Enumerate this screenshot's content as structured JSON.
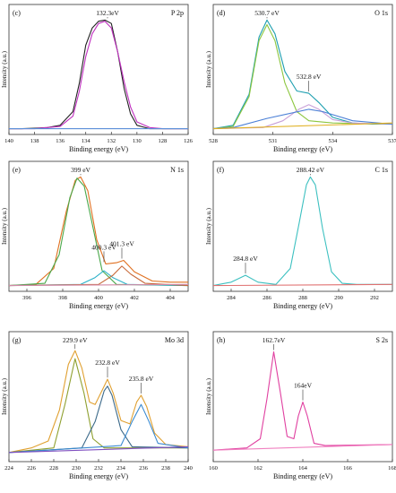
{
  "chart_data": [
    {
      "type": "line",
      "panel_label": "(c)",
      "element": "P 2p",
      "xlabel": "Binding energy (eV)",
      "ylabel": "Intensity (a.u.)",
      "xlim": [
        140,
        126
      ],
      "xticks": [
        140,
        138,
        136,
        134,
        132,
        130,
        128,
        126
      ],
      "peaks": [
        {
          "label": "132.3eV",
          "x": 132.3
        }
      ],
      "series": [
        {
          "color": "#222222",
          "points": [
            [
              140,
              0.05
            ],
            [
              139,
              0.05
            ],
            [
              138,
              0.055
            ],
            [
              137,
              0.06
            ],
            [
              136,
              0.08
            ],
            [
              135,
              0.2
            ],
            [
              134.5,
              0.45
            ],
            [
              134,
              0.78
            ],
            [
              133.5,
              0.93
            ],
            [
              133,
              0.99
            ],
            [
              132.5,
              1.0
            ],
            [
              132,
              0.97
            ],
            [
              131.5,
              0.72
            ],
            [
              131,
              0.4
            ],
            [
              130.5,
              0.18
            ],
            [
              130,
              0.08
            ],
            [
              129,
              0.05
            ],
            [
              128,
              0.05
            ],
            [
              127,
              0.05
            ],
            [
              126,
              0.05
            ]
          ]
        },
        {
          "color": "#c030c0",
          "points": [
            [
              140,
              0.05
            ],
            [
              138,
              0.05
            ],
            [
              136,
              0.07
            ],
            [
              135,
              0.16
            ],
            [
              134.5,
              0.38
            ],
            [
              134,
              0.68
            ],
            [
              133.5,
              0.88
            ],
            [
              133,
              0.97
            ],
            [
              132.5,
              0.99
            ],
            [
              132,
              0.93
            ],
            [
              131.5,
              0.72
            ],
            [
              131,
              0.46
            ],
            [
              130.5,
              0.24
            ],
            [
              130,
              0.11
            ],
            [
              129,
              0.06
            ],
            [
              128,
              0.05
            ],
            [
              126,
              0.05
            ]
          ]
        },
        {
          "color": "#5b8fd9",
          "points": [
            [
              140,
              0.05
            ],
            [
              126,
              0.05
            ]
          ]
        }
      ]
    },
    {
      "type": "line",
      "panel_label": "(d)",
      "element": "O 1s",
      "xlabel": "Binding energy (eV)",
      "ylabel": "Intensity (a.u.)",
      "xlim": [
        528,
        537
      ],
      "xticks": [
        528,
        531,
        534,
        537
      ],
      "peaks": [
        {
          "label": "530.7 eV",
          "x": 530.7
        },
        {
          "label": "532.8 eV",
          "x": 532.8
        }
      ],
      "series": [
        {
          "color": "#1e9fb0",
          "points": [
            [
              528,
              0.05
            ],
            [
              529,
              0.08
            ],
            [
              529.8,
              0.35
            ],
            [
              530.3,
              0.85
            ],
            [
              530.7,
              1.0
            ],
            [
              531.1,
              0.88
            ],
            [
              531.6,
              0.55
            ],
            [
              532.2,
              0.38
            ],
            [
              532.8,
              0.36
            ],
            [
              533.3,
              0.28
            ],
            [
              534,
              0.15
            ],
            [
              535,
              0.1
            ],
            [
              536,
              0.09
            ],
            [
              537,
              0.09
            ]
          ]
        },
        {
          "color": "#8cc63f",
          "points": [
            [
              528,
              0.05
            ],
            [
              529,
              0.07
            ],
            [
              529.8,
              0.33
            ],
            [
              530.3,
              0.82
            ],
            [
              530.7,
              0.96
            ],
            [
              531.1,
              0.82
            ],
            [
              531.6,
              0.45
            ],
            [
              532.2,
              0.2
            ],
            [
              532.8,
              0.12
            ],
            [
              534,
              0.1
            ],
            [
              537,
              0.09
            ]
          ]
        },
        {
          "color": "#c8a0d8",
          "points": [
            [
              528,
              0.05
            ],
            [
              530.5,
              0.06
            ],
            [
              531.5,
              0.12
            ],
            [
              532.3,
              0.22
            ],
            [
              532.8,
              0.26
            ],
            [
              533.3,
              0.22
            ],
            [
              534,
              0.13
            ],
            [
              535,
              0.1
            ],
            [
              537,
              0.09
            ]
          ]
        },
        {
          "color": "#4a7fd6",
          "points": [
            [
              528,
              0.05
            ],
            [
              529,
              0.06
            ],
            [
              530.7,
              0.14
            ],
            [
              532.8,
              0.22
            ],
            [
              533.5,
              0.2
            ],
            [
              535,
              0.12
            ],
            [
              537,
              0.09
            ]
          ]
        },
        {
          "color": "#e0b020",
          "points": [
            [
              528,
              0.05
            ],
            [
              537,
              0.1
            ]
          ]
        }
      ]
    },
    {
      "type": "line",
      "panel_label": "(e)",
      "element": "N 1s",
      "xlabel": "Binding energy (eV)",
      "ylabel": "Intensity (a.u.)",
      "xlim": [
        395,
        405
      ],
      "xticks": [
        396,
        398,
        400,
        402,
        404
      ],
      "peaks": [
        {
          "label": "399 eV",
          "x": 399
        },
        {
          "label": "400.3 eV",
          "x": 400.3
        },
        {
          "label": "401.3 eV",
          "x": 401.3
        }
      ],
      "series": [
        {
          "color": "#e07020",
          "points": [
            [
              395,
              0.05
            ],
            [
              396.5,
              0.06
            ],
            [
              397.5,
              0.2
            ],
            [
              398.2,
              0.7
            ],
            [
              398.7,
              0.97
            ],
            [
              399,
              1.0
            ],
            [
              399.4,
              0.88
            ],
            [
              399.9,
              0.45
            ],
            [
              400.4,
              0.24
            ],
            [
              401,
              0.25
            ],
            [
              401.4,
              0.27
            ],
            [
              402,
              0.17
            ],
            [
              403,
              0.09
            ],
            [
              404,
              0.08
            ],
            [
              405,
              0.08
            ]
          ]
        },
        {
          "color": "#4aa84a",
          "points": [
            [
              395,
              0.05
            ],
            [
              397,
              0.07
            ],
            [
              397.8,
              0.32
            ],
            [
              398.4,
              0.82
            ],
            [
              398.8,
              0.99
            ],
            [
              399.2,
              0.92
            ],
            [
              399.7,
              0.55
            ],
            [
              400.2,
              0.18
            ],
            [
              401,
              0.06
            ],
            [
              405,
              0.05
            ]
          ]
        },
        {
          "color": "#2ab0c8",
          "points": [
            [
              395,
              0.05
            ],
            [
              399,
              0.06
            ],
            [
              399.8,
              0.12
            ],
            [
              400.3,
              0.18
            ],
            [
              400.8,
              0.12
            ],
            [
              401.6,
              0.06
            ],
            [
              405,
              0.05
            ]
          ]
        },
        {
          "color": "#c86a3a",
          "points": [
            [
              395,
              0.05
            ],
            [
              400,
              0.06
            ],
            [
              400.8,
              0.14
            ],
            [
              401.3,
              0.22
            ],
            [
              401.8,
              0.15
            ],
            [
              402.6,
              0.07
            ],
            [
              405,
              0.05
            ]
          ]
        },
        {
          "color": "#d28aa8",
          "points": [
            [
              395,
              0.05
            ],
            [
              405,
              0.06
            ]
          ]
        }
      ]
    },
    {
      "type": "line",
      "panel_label": "(f)",
      "element": "C 1s",
      "xlabel": "Binding energy (eV)",
      "ylabel": "Intensity (a.u.)",
      "xlim": [
        283,
        293
      ],
      "xticks": [
        284,
        286,
        288,
        290,
        292
      ],
      "peaks": [
        {
          "label": "284.8 eV",
          "x": 284.8
        },
        {
          "label": "288.42 eV",
          "x": 288.42
        }
      ],
      "series": [
        {
          "color": "#3cc0c0",
          "points": [
            [
              283,
              0.05
            ],
            [
              284,
              0.08
            ],
            [
              284.8,
              0.14
            ],
            [
              285.5,
              0.08
            ],
            [
              286.5,
              0.06
            ],
            [
              287.3,
              0.2
            ],
            [
              287.8,
              0.6
            ],
            [
              288.2,
              0.93
            ],
            [
              288.42,
              1.0
            ],
            [
              288.7,
              0.93
            ],
            [
              289.1,
              0.55
            ],
            [
              289.6,
              0.17
            ],
            [
              290.2,
              0.07
            ],
            [
              291,
              0.06
            ],
            [
              293,
              0.06
            ]
          ]
        },
        {
          "color": "#e07070",
          "points": [
            [
              283,
              0.05
            ],
            [
              293,
              0.06
            ]
          ]
        }
      ]
    },
    {
      "type": "line",
      "panel_label": "(g)",
      "element": "Mo 3d",
      "xlabel": "Binding energy (eV)",
      "ylabel": "Intensity (a.u.)",
      "xlim": [
        224,
        240
      ],
      "xticks": [
        224,
        226,
        228,
        230,
        232,
        234,
        236,
        238,
        240
      ],
      "peaks": [
        {
          "label": "229.9 eV",
          "x": 229.9
        },
        {
          "label": "232.8 eV",
          "x": 232.8
        },
        {
          "label": "235.8 eV",
          "x": 235.8
        }
      ],
      "series": [
        {
          "color": "#e0a030",
          "points": [
            [
              224,
              0.08
            ],
            [
              226,
              0.12
            ],
            [
              227.5,
              0.18
            ],
            [
              228.5,
              0.45
            ],
            [
              229.3,
              0.85
            ],
            [
              229.9,
              0.97
            ],
            [
              230.5,
              0.82
            ],
            [
              231.2,
              0.52
            ],
            [
              231.7,
              0.5
            ],
            [
              232.3,
              0.62
            ],
            [
              232.8,
              0.72
            ],
            [
              233.3,
              0.6
            ],
            [
              234,
              0.36
            ],
            [
              234.8,
              0.33
            ],
            [
              235.4,
              0.52
            ],
            [
              235.8,
              0.58
            ],
            [
              236.3,
              0.48
            ],
            [
              237,
              0.25
            ],
            [
              238,
              0.15
            ],
            [
              240,
              0.13
            ]
          ]
        },
        {
          "color": "#8fa030",
          "points": [
            [
              224,
              0.08
            ],
            [
              228,
              0.12
            ],
            [
              229,
              0.5
            ],
            [
              229.9,
              0.9
            ],
            [
              230.7,
              0.6
            ],
            [
              231.5,
              0.2
            ],
            [
              232.5,
              0.12
            ],
            [
              240,
              0.12
            ]
          ]
        },
        {
          "color": "#3c6a8a",
          "points": [
            [
              224,
              0.08
            ],
            [
              230.5,
              0.12
            ],
            [
              231.7,
              0.35
            ],
            [
              232.5,
              0.62
            ],
            [
              232.8,
              0.66
            ],
            [
              233.2,
              0.58
            ],
            [
              234,
              0.28
            ],
            [
              235,
              0.13
            ],
            [
              240,
              0.12
            ]
          ]
        },
        {
          "color": "#3a8ad0",
          "points": [
            [
              224,
              0.08
            ],
            [
              234,
              0.14
            ],
            [
              235,
              0.35
            ],
            [
              235.8,
              0.5
            ],
            [
              236.5,
              0.35
            ],
            [
              237.3,
              0.16
            ],
            [
              240,
              0.12
            ]
          ]
        },
        {
          "color": "#8050c0",
          "points": [
            [
              224,
              0.08
            ],
            [
              240,
              0.13
            ]
          ]
        }
      ]
    },
    {
      "type": "line",
      "panel_label": "(h)",
      "element": "S 2s",
      "xlabel": "Binding energy (eV)",
      "ylabel": "Intensity (a.u.)",
      "xlim": [
        160,
        168
      ],
      "xticks": [
        160,
        162,
        164,
        166,
        168
      ],
      "peaks": [
        {
          "label": "162.7eV",
          "x": 162.7
        },
        {
          "label": "164eV",
          "x": 164
        }
      ],
      "series": [
        {
          "color": "#e040a0",
          "points": [
            [
              160,
              0.1
            ],
            [
              161.5,
              0.12
            ],
            [
              162.1,
              0.2
            ],
            [
              162.4,
              0.55
            ],
            [
              162.7,
              0.96
            ],
            [
              163.0,
              0.6
            ],
            [
              163.3,
              0.22
            ],
            [
              163.6,
              0.2
            ],
            [
              163.8,
              0.4
            ],
            [
              164,
              0.52
            ],
            [
              164.2,
              0.4
            ],
            [
              164.5,
              0.16
            ],
            [
              165,
              0.14
            ],
            [
              168,
              0.15
            ]
          ]
        },
        {
          "color": "#f080c0",
          "points": [
            [
              160,
              0.1
            ],
            [
              168,
              0.15
            ]
          ]
        }
      ]
    }
  ]
}
